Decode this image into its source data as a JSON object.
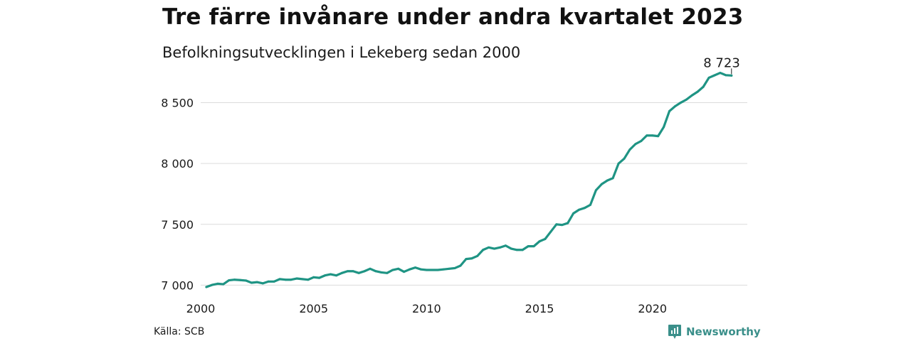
{
  "header": {
    "title": "Tre färre invånare under andra kvartalet 2023",
    "subtitle": "Befolkningsutvecklingen i Lekeberg sedan 2000"
  },
  "footer": {
    "source": "Källa: SCB",
    "brand": "Newsworthy",
    "brand_icon": "newsworthy-logo-icon",
    "brand_color": "#3a8f8a"
  },
  "chart_data": {
    "type": "line",
    "title": "Tre färre invånare under andra kvartalet 2023",
    "subtitle": "Befolkningsutvecklingen i Lekeberg sedan 2000",
    "xlabel": "",
    "ylabel": "",
    "x_ticks": [
      2000,
      2005,
      2010,
      2015,
      2020
    ],
    "y_ticks": [
      7000,
      7500,
      8000,
      8500
    ],
    "y_tick_labels": [
      "7 000",
      "7 500",
      "8 000",
      "8 500"
    ],
    "x_tick_labels": [
      "2000",
      "2005",
      "2010",
      "2015",
      "2020"
    ],
    "xlim": [
      2000,
      2024.2
    ],
    "ylim": [
      6985,
      8760
    ],
    "grid": "horizontal",
    "legend": "none",
    "line_color": "#1f9484",
    "end_label": "8 723",
    "series": [
      {
        "x": [
          2000.25,
          2000.5,
          2000.75,
          2001.0,
          2001.25,
          2001.5,
          2001.75,
          2002.0,
          2002.25,
          2002.5,
          2002.75,
          2003.0,
          2003.25,
          2003.5,
          2003.75,
          2004.0,
          2004.25,
          2004.5,
          2004.75,
          2005.0,
          2005.25,
          2005.5,
          2005.75,
          2006.0,
          2006.25,
          2006.5,
          2006.75,
          2007.0,
          2007.25,
          2007.5,
          2007.75,
          2008.0,
          2008.25,
          2008.5,
          2008.75,
          2009.0,
          2009.25,
          2009.5,
          2009.75,
          2010.0,
          2010.25,
          2010.5,
          2010.75,
          2011.0,
          2011.25,
          2011.5,
          2011.75,
          2012.0,
          2012.25,
          2012.5,
          2012.75,
          2013.0,
          2013.25,
          2013.5,
          2013.75,
          2014.0,
          2014.25,
          2014.5,
          2014.75,
          2015.0,
          2015.25,
          2015.5,
          2015.75,
          2016.0,
          2016.25,
          2016.5,
          2016.75,
          2017.0,
          2017.25,
          2017.5,
          2017.75,
          2018.0,
          2018.25,
          2018.5,
          2018.75,
          2019.0,
          2019.25,
          2019.5,
          2019.75,
          2020.0,
          2020.25,
          2020.5,
          2020.75,
          2021.0,
          2021.25,
          2021.5,
          2021.75,
          2022.0,
          2022.25,
          2022.5,
          2022.75,
          2023.0,
          2023.25,
          2023.5
        ],
        "values": [
          6985,
          7002,
          7012,
          7008,
          7040,
          7045,
          7042,
          7038,
          7020,
          7025,
          7015,
          7030,
          7030,
          7050,
          7045,
          7045,
          7055,
          7050,
          7045,
          7065,
          7060,
          7080,
          7090,
          7080,
          7100,
          7115,
          7115,
          7100,
          7115,
          7135,
          7115,
          7105,
          7100,
          7125,
          7135,
          7110,
          7130,
          7145,
          7130,
          7125,
          7125,
          7125,
          7130,
          7135,
          7140,
          7160,
          7215,
          7220,
          7240,
          7290,
          7310,
          7300,
          7310,
          7325,
          7300,
          7290,
          7290,
          7320,
          7320,
          7360,
          7380,
          7440,
          7500,
          7495,
          7510,
          7590,
          7620,
          7635,
          7660,
          7780,
          7830,
          7860,
          7880,
          8000,
          8040,
          8115,
          8160,
          8185,
          8230,
          8230,
          8225,
          8300,
          8430,
          8470,
          8500,
          8525,
          8560,
          8590,
          8630,
          8705,
          8725,
          8745,
          8726,
          8723
        ]
      }
    ]
  }
}
